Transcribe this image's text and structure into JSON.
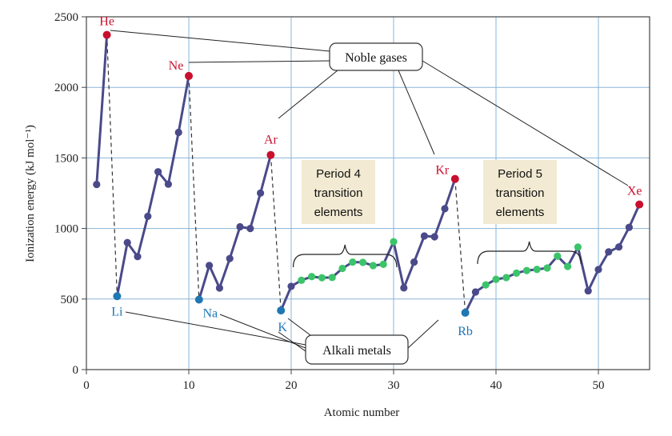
{
  "chart_data": {
    "type": "line",
    "xlabel": "Atomic number",
    "ylabel": "Ionization energy (kJ mol⁻¹)",
    "xlim": [
      0,
      55
    ],
    "ylim": [
      0,
      2500
    ],
    "xticks": [
      0,
      10,
      20,
      30,
      40,
      50
    ],
    "yticks": [
      0,
      500,
      1000,
      1500,
      2000,
      2500
    ],
    "grid": true,
    "colors": {
      "line": "#4a4a8a",
      "noble": "#c8102e",
      "alkali": "#1f77b4",
      "transition": "#3cc46a",
      "other": "#4a4a8a",
      "grid": "#8ab4d8",
      "box_fill": "#f2ead2"
    },
    "periods": [
      {
        "x": [
          1,
          2
        ],
        "y": [
          1312,
          2372
        ]
      },
      {
        "x": [
          3,
          4,
          5,
          6,
          7,
          8,
          9,
          10
        ],
        "y": [
          520,
          900,
          801,
          1086,
          1402,
          1314,
          1681,
          2081
        ]
      },
      {
        "x": [
          11,
          12,
          13,
          14,
          15,
          16,
          17,
          18
        ],
        "y": [
          496,
          738,
          578,
          787,
          1012,
          1000,
          1251,
          1521
        ]
      },
      {
        "x": [
          19,
          20,
          21,
          22,
          23,
          24,
          25,
          26,
          27,
          28,
          29,
          30,
          31,
          32,
          33,
          34,
          35,
          36
        ],
        "y": [
          419,
          590,
          633,
          659,
          651,
          653,
          717,
          762,
          760,
          737,
          746,
          906,
          579,
          762,
          947,
          941,
          1140,
          1351
        ]
      },
      {
        "x": [
          37,
          38,
          39,
          40,
          41,
          42,
          43,
          44,
          45,
          46,
          47,
          48,
          49,
          50,
          51,
          52,
          53,
          54
        ],
        "y": [
          403,
          550,
          600,
          640,
          652,
          684,
          702,
          710,
          720,
          804,
          731,
          868,
          558,
          709,
          834,
          869,
          1008,
          1170
        ]
      }
    ],
    "transition_ranges": [
      [
        21,
        30
      ],
      [
        39,
        48
      ]
    ],
    "noble_gases": [
      {
        "label": "He",
        "x": 2,
        "y": 2372
      },
      {
        "label": "Ne",
        "x": 10,
        "y": 2081
      },
      {
        "label": "Ar",
        "x": 18,
        "y": 1521
      },
      {
        "label": "Kr",
        "x": 36,
        "y": 1351
      },
      {
        "label": "Xe",
        "x": 54,
        "y": 1170
      }
    ],
    "alkali_metals": [
      {
        "label": "Li",
        "x": 3,
        "y": 520
      },
      {
        "label": "Na",
        "x": 11,
        "y": 496
      },
      {
        "label": "K",
        "x": 19,
        "y": 419
      },
      {
        "label": "Rb",
        "x": 37,
        "y": 403
      }
    ],
    "callouts": {
      "noble": "Noble gases",
      "alkali": "Alkali metals"
    },
    "period_boxes": [
      {
        "lines": [
          "Period 4",
          "transition",
          "elements"
        ]
      },
      {
        "lines": [
          "Period 5",
          "transition",
          "elements"
        ]
      }
    ]
  }
}
